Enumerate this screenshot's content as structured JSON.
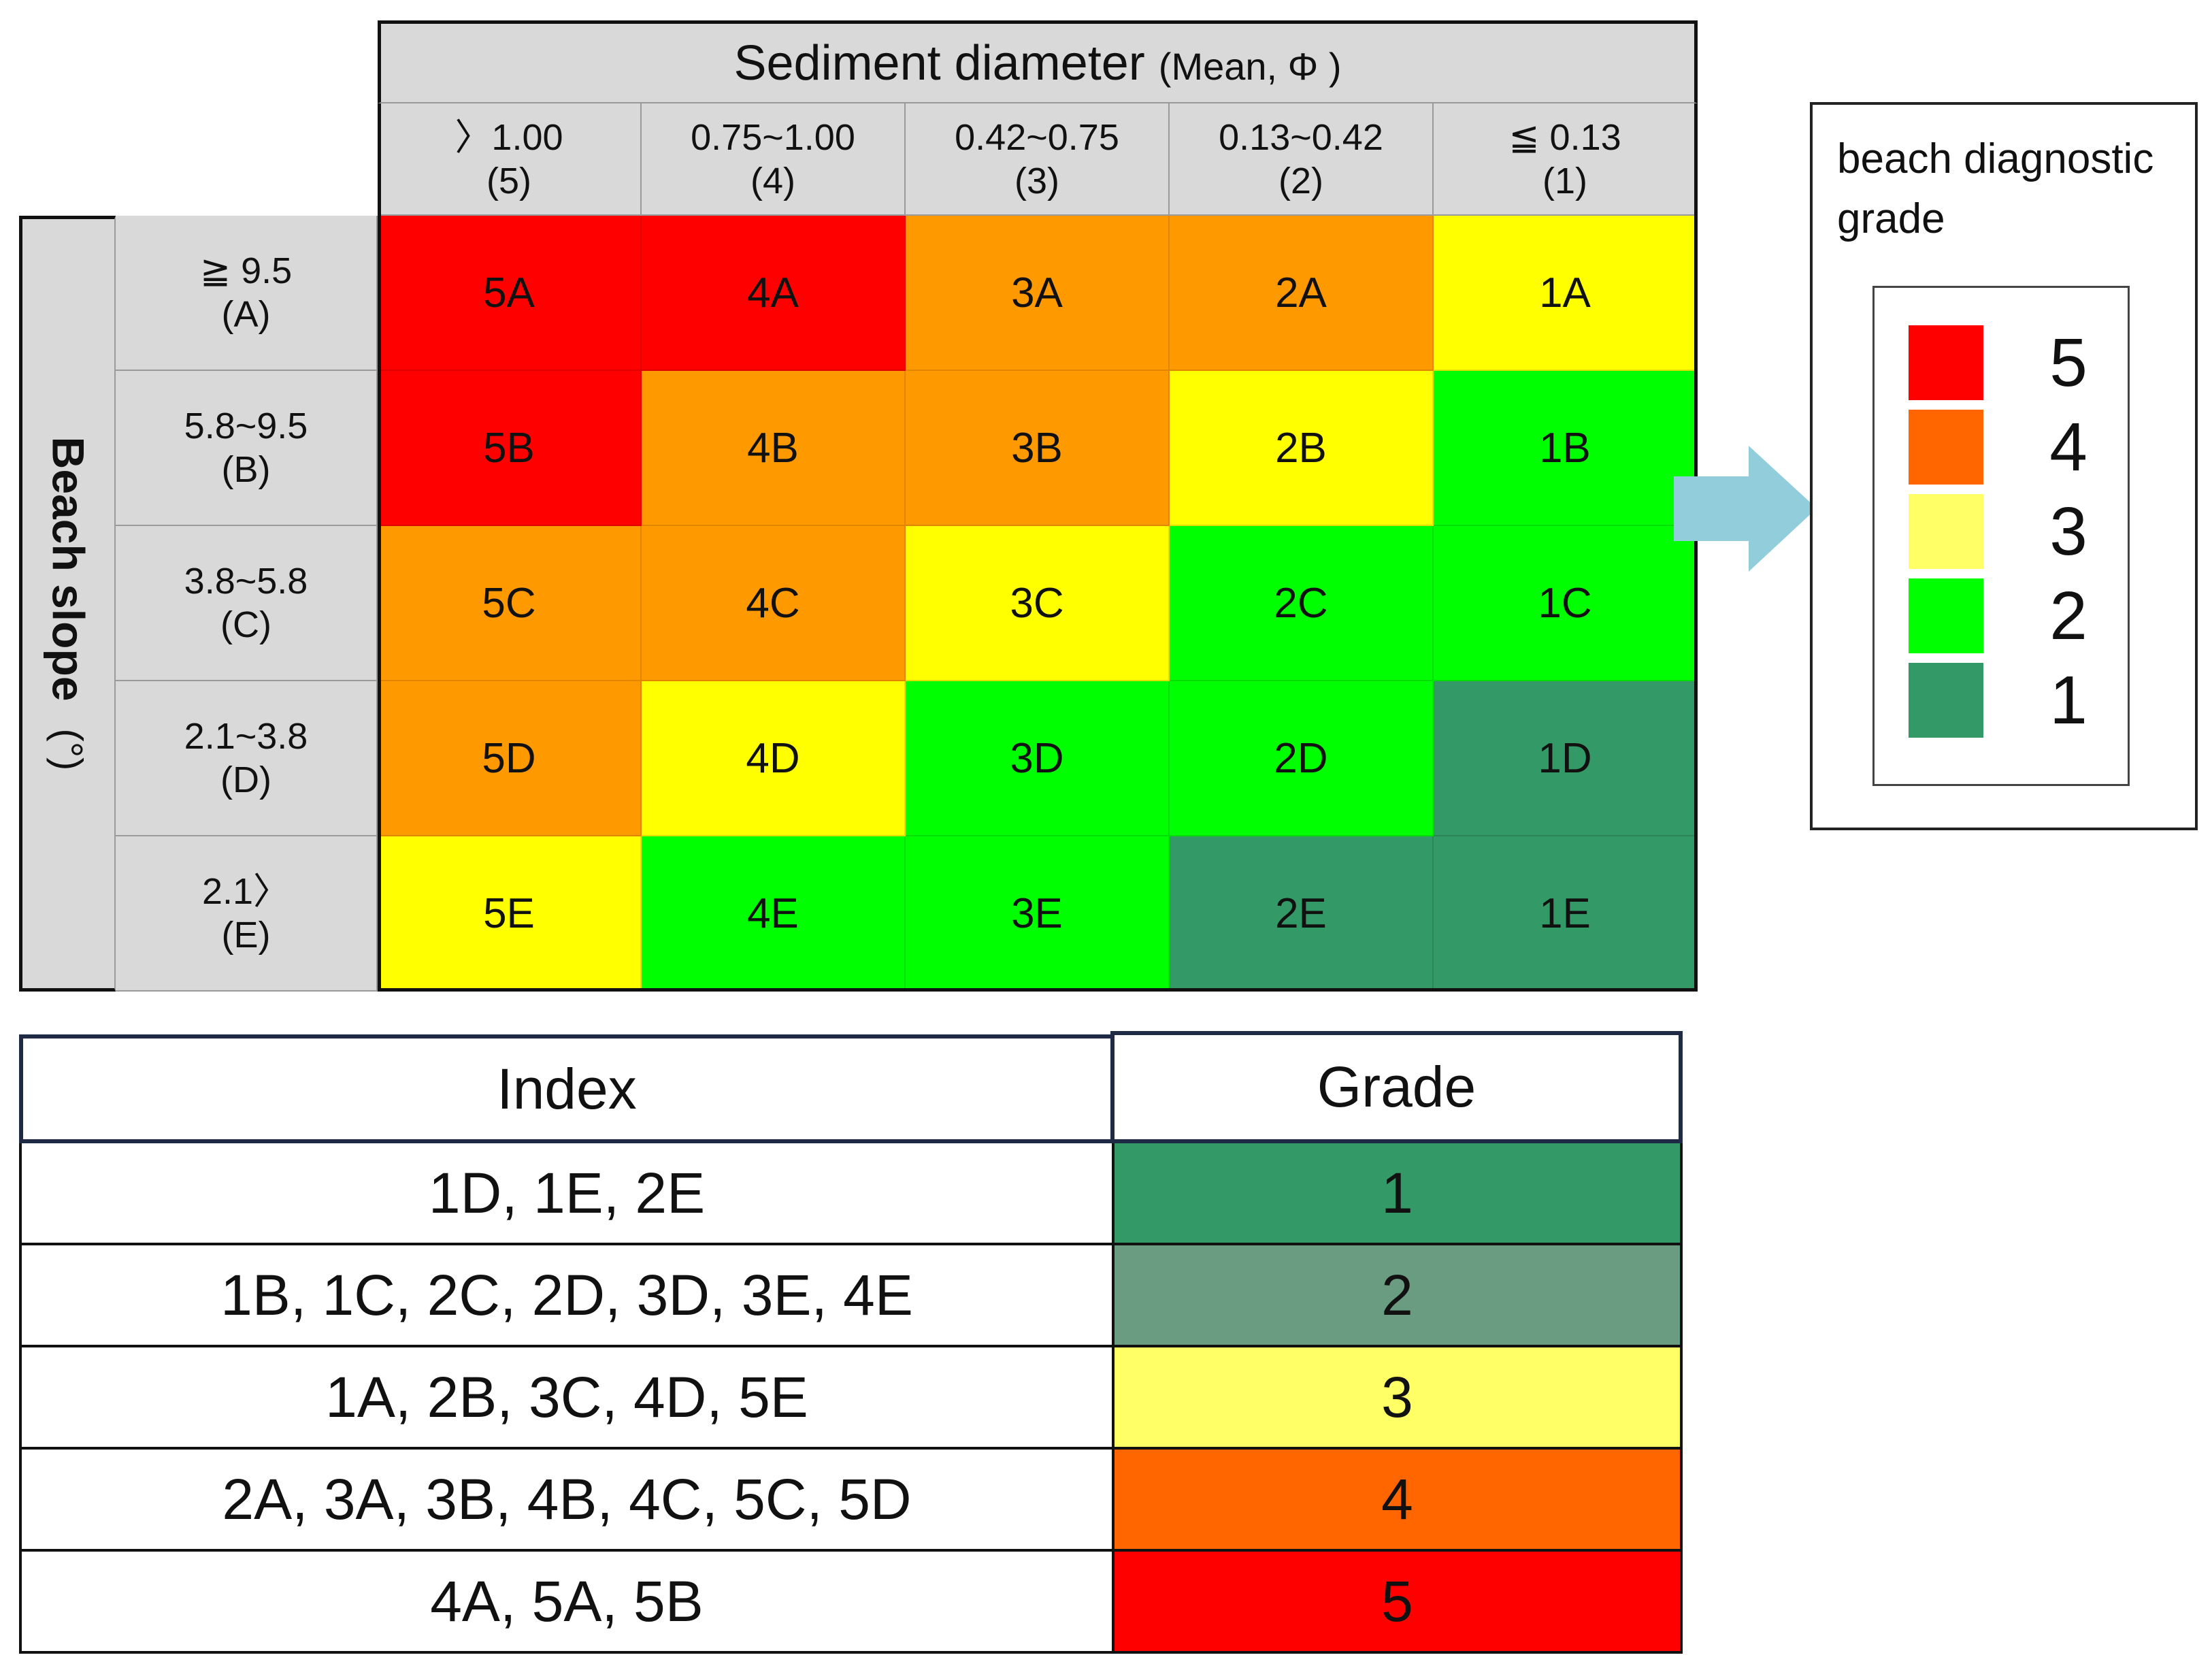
{
  "matrix": {
    "column_axis_title": "Sediment diameter",
    "column_axis_unit": "(Mean, Φ )",
    "row_axis_title": "Beach slope",
    "row_axis_unit": "(°)",
    "columns": [
      {
        "range": "〉1.00",
        "code": "(5)"
      },
      {
        "range": "0.75~1.00",
        "code": "(4)"
      },
      {
        "range": "0.42~0.75",
        "code": "(3)"
      },
      {
        "range": "0.13~0.42",
        "code": "(2)"
      },
      {
        "range": "≦ 0.13",
        "code": "(1)"
      }
    ],
    "rows": [
      {
        "range": "≧ 9.5",
        "code": "(A)"
      },
      {
        "range": "5.8~9.5",
        "code": "(B)"
      },
      {
        "range": "3.8~5.8",
        "code": "(C)"
      },
      {
        "range": "2.1~3.8",
        "code": "(D)"
      },
      {
        "range": "2.1〉",
        "code": "(E)"
      }
    ],
    "cells": [
      [
        {
          "label": "5A",
          "color": "#ff0000"
        },
        {
          "label": "4A",
          "color": "#ff0000"
        },
        {
          "label": "3A",
          "color": "#ff9900"
        },
        {
          "label": "2A",
          "color": "#ff9900"
        },
        {
          "label": "1A",
          "color": "#ffff00"
        }
      ],
      [
        {
          "label": "5B",
          "color": "#ff0000"
        },
        {
          "label": "4B",
          "color": "#ff9900"
        },
        {
          "label": "3B",
          "color": "#ff9900"
        },
        {
          "label": "2B",
          "color": "#ffff00"
        },
        {
          "label": "1B",
          "color": "#00ff00"
        }
      ],
      [
        {
          "label": "5C",
          "color": "#ff9900"
        },
        {
          "label": "4C",
          "color": "#ff9900"
        },
        {
          "label": "3C",
          "color": "#ffff00"
        },
        {
          "label": "2C",
          "color": "#00ff00"
        },
        {
          "label": "1C",
          "color": "#00ff00"
        }
      ],
      [
        {
          "label": "5D",
          "color": "#ff9900"
        },
        {
          "label": "4D",
          "color": "#ffff00"
        },
        {
          "label": "3D",
          "color": "#00ff00"
        },
        {
          "label": "2D",
          "color": "#00ff00"
        },
        {
          "label": "1D",
          "color": "#339966"
        }
      ],
      [
        {
          "label": "5E",
          "color": "#ffff00"
        },
        {
          "label": "4E",
          "color": "#00ff00"
        },
        {
          "label": "3E",
          "color": "#00ff00"
        },
        {
          "label": "2E",
          "color": "#339966"
        },
        {
          "label": "1E",
          "color": "#339966"
        }
      ]
    ]
  },
  "arrow_color": "#92cddc",
  "legend": {
    "title_line1": "beach diagnostic",
    "title_line2": "grade",
    "items": [
      {
        "label": "5",
        "color": "#ff0000"
      },
      {
        "label": "4",
        "color": "#ff6600"
      },
      {
        "label": "3",
        "color": "#ffff66"
      },
      {
        "label": "2",
        "color": "#00ff00"
      },
      {
        "label": "1",
        "color": "#339966"
      }
    ]
  },
  "grade_table": {
    "header_index": "Index",
    "header_grade": "Grade",
    "rows": [
      {
        "index": "1D, 1E, 2E",
        "grade": "1",
        "color": "#339966"
      },
      {
        "index": "1B, 1C, 2C, 2D, 3D, 3E, 4E",
        "grade": "2",
        "color": "#6a9c81"
      },
      {
        "index": "1A, 2B, 3C, 4D, 5E",
        "grade": "3",
        "color": "#ffff66"
      },
      {
        "index": "2A, 3A, 3B, 4B, 4C, 5C, 5D",
        "grade": "4",
        "color": "#ff6600"
      },
      {
        "index": "4A, 5A, 5B",
        "grade": "5",
        "color": "#ff0000"
      }
    ]
  }
}
